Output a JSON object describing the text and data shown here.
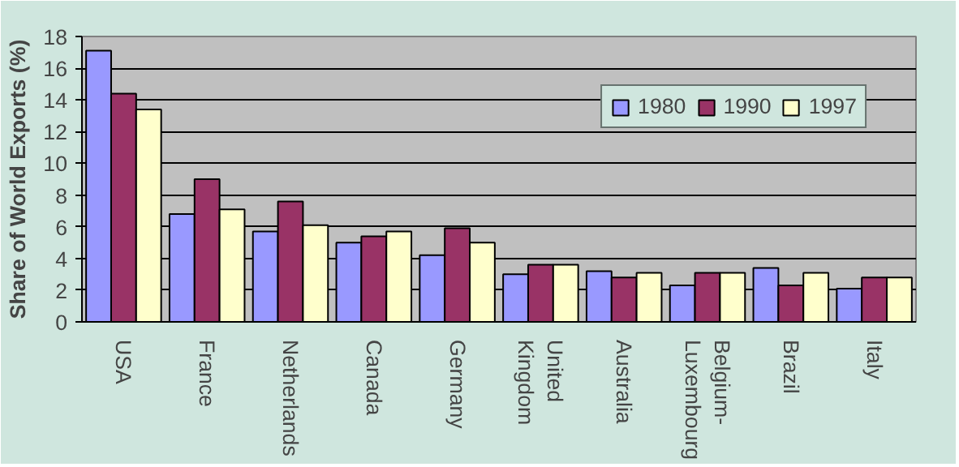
{
  "chart_data": {
    "type": "bar",
    "ylabel": "Share of World Exports (%)",
    "categories": [
      "USA",
      "France",
      "Netherlands",
      "Canada",
      "Germany",
      "United Kingdom",
      "Australia",
      "Belgium-Luxembourg",
      "Brazil",
      "Italy"
    ],
    "series": [
      {
        "name": "1980",
        "color": "#9999ff",
        "values": [
          17.1,
          6.8,
          5.7,
          5.0,
          4.2,
          3.0,
          3.2,
          2.3,
          3.4,
          2.1
        ]
      },
      {
        "name": "1990",
        "color": "#993366",
        "values": [
          14.4,
          9.0,
          7.6,
          5.4,
          5.9,
          3.6,
          2.8,
          3.1,
          2.3,
          2.8
        ]
      },
      {
        "name": "1997",
        "color": "#ffffcc",
        "values": [
          13.4,
          7.1,
          6.1,
          5.7,
          5.0,
          3.6,
          3.1,
          3.1,
          3.1,
          2.8
        ]
      }
    ],
    "ylim": [
      0,
      18
    ],
    "yticks": [
      0,
      2,
      4,
      6,
      8,
      10,
      12,
      14,
      16,
      18
    ],
    "grid": "y",
    "legend": "top right"
  }
}
